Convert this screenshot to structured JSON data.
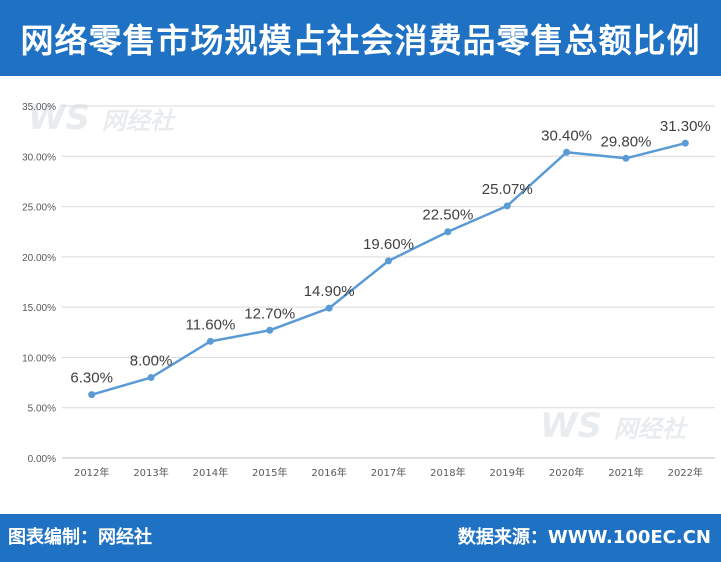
{
  "header": {
    "title": "网络零售市场规模占社会消费品零售总额比例"
  },
  "footer": {
    "left": "图表编制：网经社",
    "right": "数据来源：WWW.100EC.CN"
  },
  "watermark": {
    "logo": "WS",
    "name": "网经社",
    "site": "WWW.100EC.CN"
  },
  "colors": {
    "header": "#1e71c3",
    "line": "#5b9bd5",
    "grid": "#d9d9d9"
  },
  "chart_data": {
    "type": "line",
    "title": "",
    "xlabel": "",
    "ylabel": "",
    "categories": [
      "2012年",
      "2013年",
      "2014年",
      "2015年",
      "2016年",
      "2017年",
      "2018年",
      "2019年",
      "2020年",
      "2021年",
      "2022年"
    ],
    "values": [
      6.3,
      8.0,
      11.6,
      12.7,
      14.9,
      19.6,
      22.5,
      25.07,
      30.4,
      29.8,
      31.3
    ],
    "data_labels": [
      "6.30%",
      "8.00%",
      "11.60%",
      "12.70%",
      "14.90%",
      "19.60%",
      "22.50%",
      "25.07%",
      "30.40%",
      "29.80%",
      "31.30%"
    ],
    "ylim": [
      0,
      35
    ],
    "yticks": [
      0,
      5,
      10,
      15,
      20,
      25,
      30,
      35
    ],
    "ytick_labels": [
      "0.00%",
      "5.00%",
      "10.00%",
      "15.00%",
      "20.00%",
      "25.00%",
      "30.00%",
      "35.00%"
    ],
    "grid": true,
    "legend": "none"
  }
}
